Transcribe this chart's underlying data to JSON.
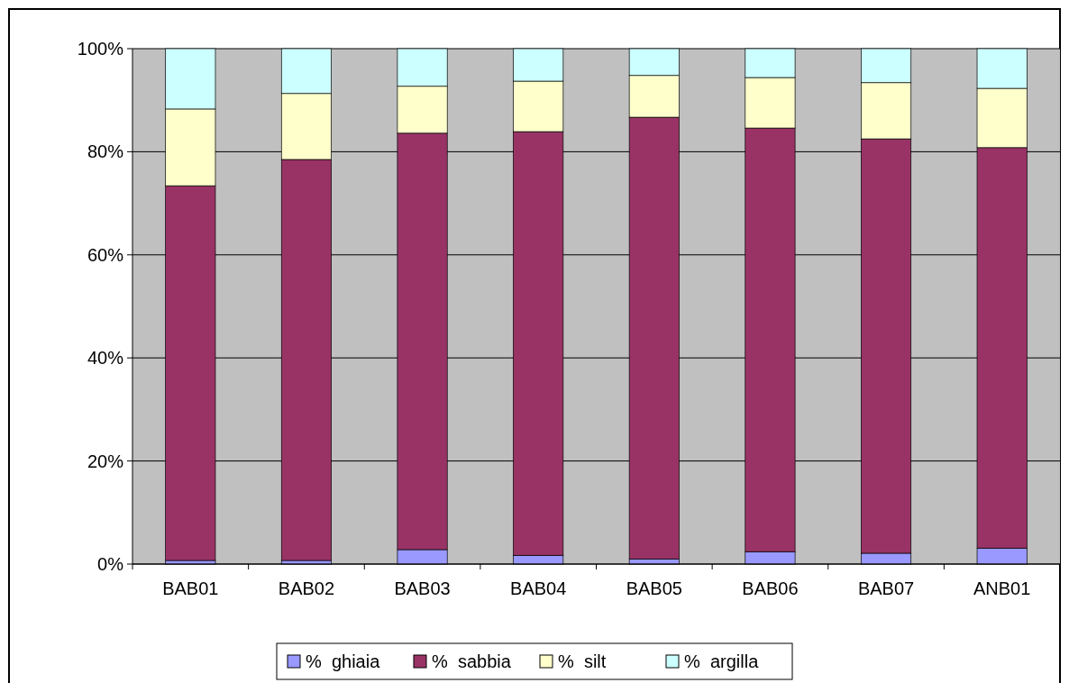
{
  "chart_data": {
    "type": "bar",
    "stacked": true,
    "categories": [
      "BAB01",
      "BAB02",
      "BAB03",
      "BAB04",
      "BAB05",
      "BAB06",
      "BAB07",
      "ANB01"
    ],
    "series": [
      {
        "name": "%  ghiaia",
        "color": "#9999ff",
        "values": [
          0.7,
          0.7,
          2.8,
          1.7,
          1.0,
          2.4,
          2.1,
          3.1
        ]
      },
      {
        "name": "%  sabbia",
        "color": "#993366",
        "values": [
          72.7,
          77.8,
          80.8,
          82.2,
          85.7,
          82.2,
          80.4,
          77.7
        ]
      },
      {
        "name": "%  silt",
        "color": "#ffffcc",
        "values": [
          14.9,
          12.8,
          9.1,
          9.8,
          8.1,
          9.8,
          10.9,
          11.5
        ]
      },
      {
        "name": "%  argilla",
        "color": "#ccffff",
        "values": [
          11.7,
          8.7,
          7.3,
          6.3,
          5.2,
          5.6,
          6.6,
          7.7
        ]
      }
    ],
    "ylim": [
      0,
      100
    ],
    "yticks": [
      {
        "value": 0,
        "label": "0%"
      },
      {
        "value": 20,
        "label": "20%"
      },
      {
        "value": 40,
        "label": "40%"
      },
      {
        "value": 60,
        "label": "60%"
      },
      {
        "value": 80,
        "label": "80%"
      },
      {
        "value": 100,
        "label": "100%"
      }
    ],
    "grid": "y",
    "legend": "bottom"
  }
}
